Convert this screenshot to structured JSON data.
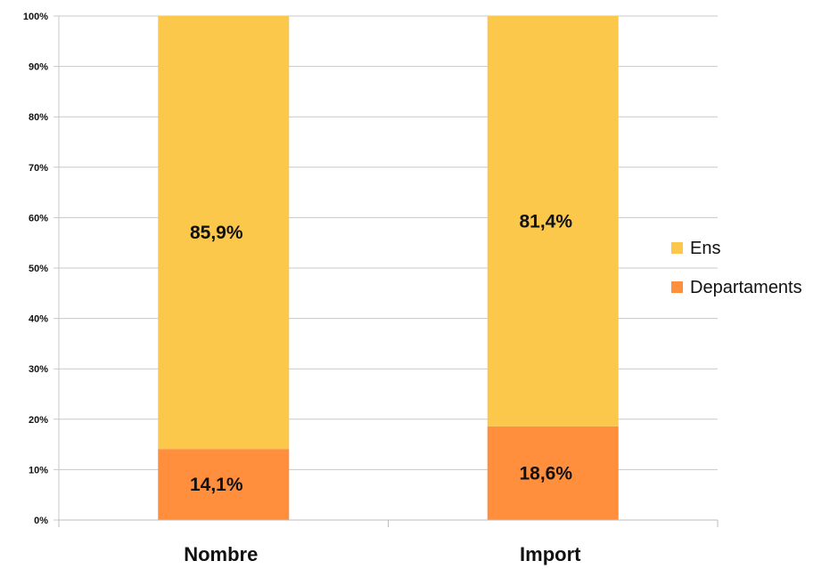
{
  "chart_data": {
    "type": "bar",
    "stacked": true,
    "percent_stacked": true,
    "categories": [
      "Nombre",
      "Import"
    ],
    "series": [
      {
        "name": "Departaments",
        "values": [
          14.1,
          18.6
        ],
        "labels": [
          "14,1%",
          "18,6%"
        ],
        "color": "#FF8F3C"
      },
      {
        "name": "Ens",
        "values": [
          85.9,
          81.4
        ],
        "labels": [
          "85,9%",
          "81,4%"
        ],
        "color": "#FCC84C"
      }
    ],
    "yticks": [
      "0%",
      "10%",
      "20%",
      "30%",
      "40%",
      "50%",
      "60%",
      "70%",
      "80%",
      "90%",
      "100%"
    ],
    "ylim": [
      0,
      100
    ],
    "grid": true,
    "legend_position": "right",
    "legend_order": [
      "Ens",
      "Departaments"
    ]
  }
}
